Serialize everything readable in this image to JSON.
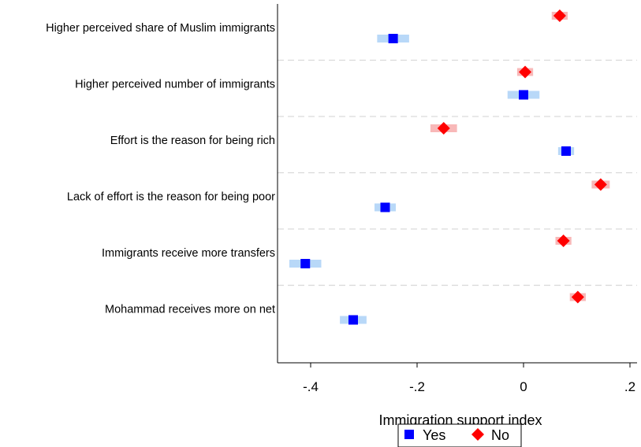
{
  "chart_data": {
    "type": "scatter",
    "xlabel": "Immigration support index",
    "xlim": [
      -0.47,
      0.2
    ],
    "xticks": [
      {
        "value": -0.4,
        "label": "-.4"
      },
      {
        "value": -0.2,
        "label": "-.2"
      },
      {
        "value": 0,
        "label": "0"
      },
      {
        "value": 0.2,
        "label": ".2"
      }
    ],
    "categories": [
      "Higher perceived share of Muslim immigrants",
      "Higher perceived number of immigrants",
      "Effort is the reason for being rich",
      "Lack of effort is the reason for being poor",
      "Immigrants receive more transfers",
      "Mohammad receives more on net"
    ],
    "series": [
      {
        "name": "Yes",
        "marker": "square",
        "color": "#0000ff",
        "ci_color": "#b8d8f8",
        "values": [
          -0.245,
          0.0,
          0.08,
          -0.26,
          -0.41,
          -0.32
        ],
        "ci": [
          [
            -0.275,
            -0.215
          ],
          [
            -0.03,
            0.03
          ],
          [
            0.065,
            0.095
          ],
          [
            -0.28,
            -0.24
          ],
          [
            -0.44,
            -0.38
          ],
          [
            -0.345,
            -0.295
          ]
        ]
      },
      {
        "name": "No",
        "marker": "diamond",
        "color": "#ff0000",
        "ci_color": "#f8b8b8",
        "values": [
          0.068,
          0.003,
          -0.15,
          0.145,
          0.075,
          0.102
        ],
        "ci": [
          [
            0.053,
            0.083
          ],
          [
            -0.012,
            0.018
          ],
          [
            -0.175,
            -0.125
          ],
          [
            0.128,
            0.162
          ],
          [
            0.06,
            0.09
          ],
          [
            0.087,
            0.117
          ]
        ]
      }
    ],
    "grid": {
      "horizontal_separators": true,
      "style": "dashed"
    },
    "legend": {
      "position": "bottom",
      "entries": [
        "Yes",
        "No"
      ]
    }
  }
}
